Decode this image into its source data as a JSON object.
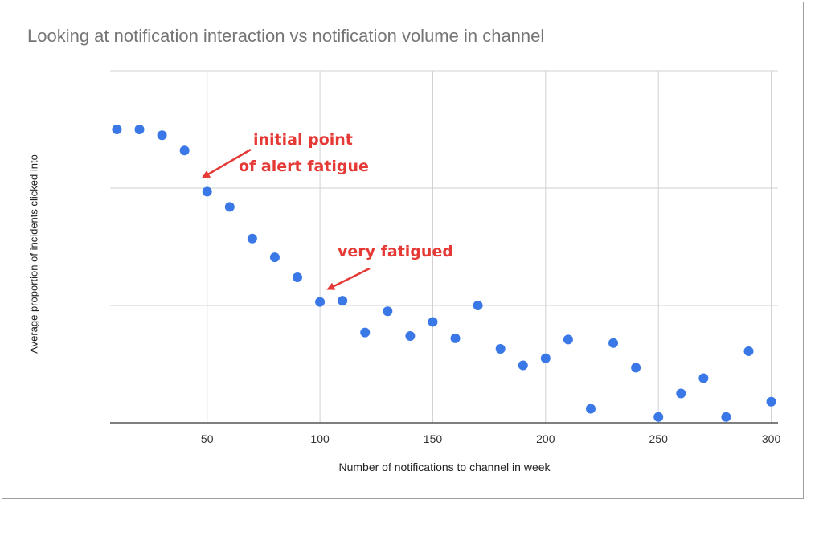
{
  "chart_data": {
    "type": "scatter",
    "title": "Looking at notification interaction vs notification volume in channel",
    "xlabel": "Number of notifications to channel in week",
    "ylabel": "Average proportion of incidents clicked into",
    "xlim": [
      7,
      303
    ],
    "ylim": [
      0,
      3
    ],
    "x_ticks": [
      50,
      100,
      150,
      200,
      250,
      300
    ],
    "y_gridlines": [
      0,
      1,
      2,
      3
    ],
    "y_tick_labels_shown": false,
    "grid": true,
    "colors": {
      "points": "#3b78e7",
      "annotation": "#e53935",
      "grid": "#d0d0d0"
    },
    "points": [
      {
        "x": 10,
        "y": 2.5
      },
      {
        "x": 20,
        "y": 2.5
      },
      {
        "x": 30,
        "y": 2.45
      },
      {
        "x": 40,
        "y": 2.32
      },
      {
        "x": 50,
        "y": 1.97
      },
      {
        "x": 60,
        "y": 1.84
      },
      {
        "x": 70,
        "y": 1.57
      },
      {
        "x": 80,
        "y": 1.41
      },
      {
        "x": 90,
        "y": 1.24
      },
      {
        "x": 100,
        "y": 1.03
      },
      {
        "x": 110,
        "y": 1.04
      },
      {
        "x": 120,
        "y": 0.77
      },
      {
        "x": 130,
        "y": 0.95
      },
      {
        "x": 140,
        "y": 0.74
      },
      {
        "x": 150,
        "y": 0.86
      },
      {
        "x": 160,
        "y": 0.72
      },
      {
        "x": 170,
        "y": 1.0
      },
      {
        "x": 180,
        "y": 0.63
      },
      {
        "x": 190,
        "y": 0.49
      },
      {
        "x": 200,
        "y": 0.55
      },
      {
        "x": 210,
        "y": 0.71
      },
      {
        "x": 220,
        "y": 0.12
      },
      {
        "x": 230,
        "y": 0.68
      },
      {
        "x": 240,
        "y": 0.47
      },
      {
        "x": 250,
        "y": 0.05
      },
      {
        "x": 260,
        "y": 0.25
      },
      {
        "x": 270,
        "y": 0.38
      },
      {
        "x": 280,
        "y": 0.05
      },
      {
        "x": 290,
        "y": 0.61
      },
      {
        "x": 300,
        "y": 0.18
      }
    ],
    "annotations": [
      {
        "lines": [
          "initial point",
          "of alert fatigue"
        ],
        "points_to": {
          "x": 50,
          "y": 1.97
        }
      },
      {
        "lines": [
          "very fatigued"
        ],
        "points_to": {
          "x": 100,
          "y": 1.03
        }
      }
    ]
  }
}
